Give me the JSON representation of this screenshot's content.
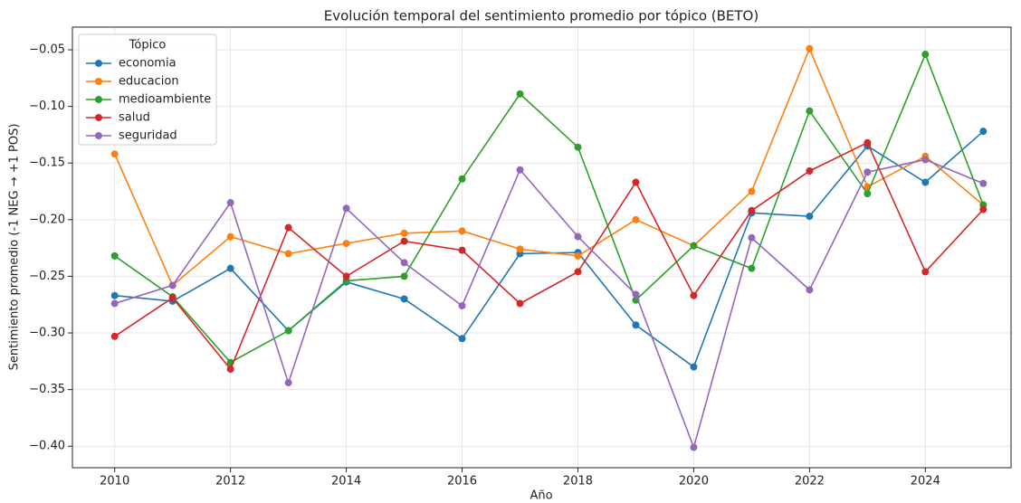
{
  "chart_data": {
    "type": "line",
    "title": "Evolución temporal del sentimiento promedio por tópico (BETO)",
    "x_label": "Año",
    "y_label": "Sentimiento promedio (-1 NEG → +1 POS)",
    "legend_title": "Tópico",
    "legend_position": "upper left",
    "grid": true,
    "x": [
      2010,
      2011,
      2012,
      2013,
      2014,
      2015,
      2016,
      2017,
      2018,
      2019,
      2020,
      2021,
      2022,
      2023,
      2024,
      2025
    ],
    "xlim": [
      2009.27,
      2025.48
    ],
    "xticks": [
      2010,
      2012,
      2014,
      2016,
      2018,
      2020,
      2022,
      2024
    ],
    "ylim": [
      -0.419,
      -0.03
    ],
    "yticks": [
      {
        "value": -0.05,
        "label": "−0.05"
      },
      {
        "value": -0.1,
        "label": "−0.10"
      },
      {
        "value": -0.15,
        "label": "−0.15"
      },
      {
        "value": -0.2,
        "label": "−0.20"
      },
      {
        "value": -0.25,
        "label": "−0.25"
      },
      {
        "value": -0.3,
        "label": "−0.30"
      },
      {
        "value": -0.35,
        "label": "−0.35"
      },
      {
        "value": -0.4,
        "label": "−0.40"
      }
    ],
    "series": [
      {
        "name": "economia",
        "color": "#1f77b4",
        "values": [
          -0.267,
          -0.272,
          -0.243,
          -0.298,
          -0.255,
          -0.27,
          -0.305,
          -0.23,
          -0.229,
          -0.293,
          -0.33,
          -0.194,
          -0.197,
          -0.135,
          -0.167,
          -0.122
        ]
      },
      {
        "name": "educacion",
        "color": "#ff7f0e",
        "values": [
          -0.142,
          -0.258,
          -0.215,
          -0.23,
          -0.221,
          -0.212,
          -0.21,
          -0.226,
          -0.232,
          -0.2,
          -0.223,
          -0.175,
          -0.049,
          -0.171,
          -0.144,
          -0.187
        ]
      },
      {
        "name": "medioambiente",
        "color": "#2ca02c",
        "values": [
          -0.232,
          -0.268,
          -0.326,
          -0.298,
          -0.254,
          -0.25,
          -0.164,
          -0.089,
          -0.136,
          -0.271,
          -0.223,
          -0.243,
          -0.104,
          -0.177,
          -0.054,
          -0.187
        ]
      },
      {
        "name": "salud",
        "color": "#d62728",
        "values": [
          -0.303,
          -0.269,
          -0.332,
          -0.207,
          -0.25,
          -0.219,
          -0.227,
          -0.274,
          -0.246,
          -0.167,
          -0.267,
          -0.192,
          -0.157,
          -0.132,
          -0.246,
          -0.191
        ]
      },
      {
        "name": "seguridad",
        "color": "#9467bd",
        "values": [
          -0.274,
          -0.258,
          -0.185,
          -0.344,
          -0.19,
          -0.238,
          -0.276,
          -0.156,
          -0.215,
          -0.266,
          -0.401,
          -0.216,
          -0.262,
          -0.158,
          -0.147,
          -0.168
        ]
      }
    ]
  }
}
